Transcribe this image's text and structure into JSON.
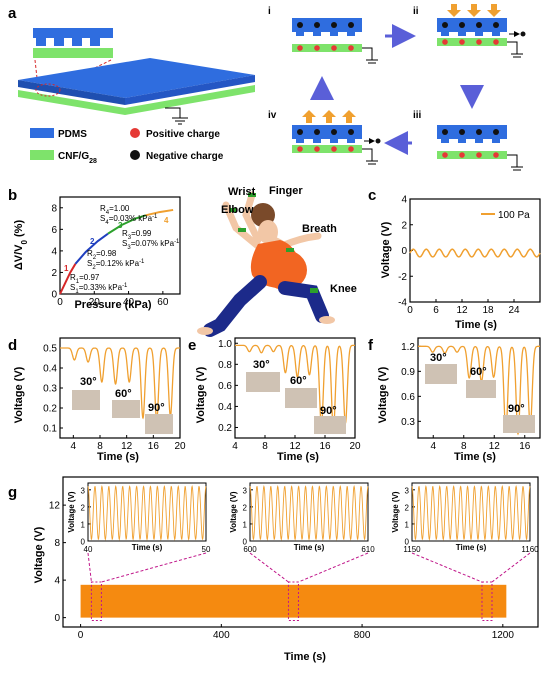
{
  "panel_a": {
    "label": "a",
    "steps": [
      "i",
      "ii",
      "iii",
      "iv"
    ],
    "legend": {
      "pdms": "PDMS",
      "cnf": "CNF/G",
      "cnf_sub": "28",
      "positive": "Positive charge",
      "negative": "Negative charge"
    },
    "colors": {
      "pdms": "#2f6ddf",
      "cnf": "#7ee36b",
      "positive": "#e53935",
      "negative": "#111111",
      "arrow_press": "#f0a030",
      "arrow_flow": "#5a5fd8"
    }
  },
  "panel_b": {
    "label": "b",
    "ylabel": "ΔV/V",
    "ylabel_sub": "0",
    "ylabel_tail": " (%)",
    "xlabel": "Pressure (kPa)",
    "xticks": [
      "0",
      "20",
      "40",
      "60"
    ],
    "yticks": [
      "0",
      "2",
      "4",
      "6",
      "8"
    ],
    "segments": [
      {
        "id": "1",
        "color": "#d62728",
        "r2": "R",
        "r2_sub": "1",
        "r2_val": "=0.97",
        "s": "S",
        "s_sub": "1",
        "s_val": "=0.33% kPa",
        "s_sup": "-1"
      },
      {
        "id": "2",
        "color": "#1f3fbf",
        "r2": "R",
        "r2_sub": "2",
        "r2_val": "=0.98",
        "s": "S",
        "s_sub": "2",
        "s_val": "=0.12% kPa",
        "s_sup": "-1"
      },
      {
        "id": "3",
        "color": "#2ca02c",
        "r2": "R",
        "r2_sub": "3",
        "r2_val": "=0.99",
        "s": "S",
        "s_sub": "3",
        "s_val": "=0.07% kPa",
        "s_sup": "-1"
      },
      {
        "id": "4",
        "color": "#f0a030",
        "r2": "R",
        "r2_sub": "4",
        "r2_val": "=1.00",
        "s": "S",
        "s_sub": "4",
        "s_val": "=0.03% kPa",
        "s_sup": "-1"
      }
    ]
  },
  "body_labels": {
    "wrist": "Wrist",
    "finger": "Finger",
    "elbow": "Elbow",
    "breath": "Breath",
    "knee": "Knee"
  },
  "panel_c": {
    "label": "c",
    "ylabel": "Voltage (V)",
    "xlabel": "Time (s)",
    "legend": "100 Pa",
    "xticks": [
      "0",
      "6",
      "12",
      "18",
      "24"
    ],
    "yticks": [
      "-4",
      "-2",
      "0",
      "2",
      "4"
    ]
  },
  "panel_d": {
    "label": "d",
    "ylabel": "Voltage (V)",
    "xlabel": "Time (s)",
    "angles": [
      "30°",
      "60°",
      "90°"
    ],
    "xticks": [
      "4",
      "8",
      "12",
      "16",
      "20"
    ],
    "yticks": [
      "0.1",
      "0.2",
      "0.3",
      "0.4",
      "0.5"
    ]
  },
  "panel_e": {
    "label": "e",
    "ylabel": "Voltage (V)",
    "xlabel": "Time (s)",
    "angles": [
      "30°",
      "60°",
      "90°"
    ],
    "xticks": [
      "4",
      "8",
      "12",
      "16",
      "20"
    ],
    "yticks": [
      "0.2",
      "0.4",
      "0.6",
      "0.8",
      "1.0"
    ]
  },
  "panel_f": {
    "label": "f",
    "ylabel": "Voltage (V)",
    "xlabel": "Time (s)",
    "angles": [
      "30°",
      "60°",
      "90°"
    ],
    "xticks": [
      "4",
      "8",
      "12",
      "16"
    ],
    "yticks": [
      "0.3",
      "0.6",
      "0.9",
      "1.2"
    ]
  },
  "panel_g": {
    "label": "g",
    "ylabel": "Voltage (V)",
    "xlabel": "Time (s)",
    "xticks": [
      "0",
      "400",
      "800",
      "1200"
    ],
    "yticks": [
      "0",
      "4",
      "8",
      "12"
    ],
    "insets": [
      {
        "xticks": [
          "40",
          "50"
        ],
        "yticks": [
          "0",
          "1",
          "2",
          "3"
        ],
        "ylabel": "Voltage (V)",
        "xlabel": "Time (s)"
      },
      {
        "xticks": [
          "600",
          "610"
        ],
        "yticks": [
          "0",
          "1",
          "2",
          "3"
        ],
        "ylabel": "Voltage (V)",
        "xlabel": "Time (s)"
      },
      {
        "xticks": [
          "1150",
          "1160"
        ],
        "yticks": [
          "0",
          "1",
          "2",
          "3"
        ],
        "ylabel": "Voltage (V)",
        "xlabel": "Time (s)"
      }
    ]
  },
  "chart_data": [
    {
      "panel": "b",
      "type": "line",
      "xlabel": "Pressure (kPa)",
      "ylabel": "ΔV/V0 (%)",
      "xlim": [
        0,
        70
      ],
      "ylim": [
        0,
        9
      ],
      "series": [
        {
          "name": "1",
          "x": [
            0,
            3,
            6,
            9
          ],
          "y": [
            0,
            1.0,
            2.0,
            2.8
          ]
        },
        {
          "name": "2",
          "x": [
            9,
            15,
            22,
            28
          ],
          "y": [
            2.8,
            3.9,
            4.9,
            5.6
          ]
        },
        {
          "name": "3",
          "x": [
            28,
            36,
            44,
            50
          ],
          "y": [
            5.6,
            6.4,
            7.0,
            7.3
          ]
        },
        {
          "name": "4",
          "x": [
            50,
            58,
            66
          ],
          "y": [
            7.3,
            7.6,
            7.8
          ]
        }
      ]
    },
    {
      "panel": "c",
      "type": "line",
      "xlabel": "Time (s)",
      "ylabel": "Voltage (V)",
      "xlim": [
        0,
        30
      ],
      "ylim": [
        -4,
        4
      ],
      "series": [
        {
          "name": "100 Pa",
          "baseline": -0.2,
          "amplitude": 0.3,
          "cycles": 10
        }
      ]
    },
    {
      "panel": "d",
      "type": "line",
      "xlabel": "Time (s)",
      "ylabel": "Voltage (V)",
      "xlim": [
        2,
        20
      ],
      "ylim": [
        0.05,
        0.55
      ],
      "baseline": 0.5,
      "series": [
        {
          "name": "30°",
          "minima": [
            0.44,
            0.43
          ]
        },
        {
          "name": "60°",
          "minima": [
            0.33,
            0.32,
            0.33
          ]
        },
        {
          "name": "90°",
          "minima": [
            0.15,
            0.14,
            0.16
          ]
        }
      ]
    },
    {
      "panel": "e",
      "type": "line",
      "xlabel": "Time (s)",
      "ylabel": "Voltage (V)",
      "xlim": [
        4,
        20
      ],
      "ylim": [
        0.1,
        1.05
      ],
      "baseline": 0.98,
      "series": [
        {
          "name": "30°",
          "minima": [
            0.92,
            0.91,
            0.92
          ]
        },
        {
          "name": "60°",
          "minima": [
            0.72,
            0.68,
            0.7
          ]
        },
        {
          "name": "90°",
          "minima": [
            0.22,
            0.18,
            0.24
          ]
        }
      ]
    },
    {
      "panel": "f",
      "type": "line",
      "xlabel": "Time (s)",
      "ylabel": "Voltage (V)",
      "xlim": [
        2,
        18
      ],
      "ylim": [
        0.1,
        1.3
      ],
      "baseline": 1.2,
      "series": [
        {
          "name": "30°",
          "minima": [
            1.13,
            1.12,
            1.13
          ]
        },
        {
          "name": "60°",
          "minima": [
            0.82,
            0.78,
            0.83
          ]
        },
        {
          "name": "90°",
          "minima": [
            0.2,
            0.15,
            0.25
          ]
        }
      ]
    },
    {
      "panel": "g",
      "type": "area",
      "xlabel": "Time (s)",
      "ylabel": "Voltage (V)",
      "xlim": [
        -50,
        1300
      ],
      "ylim": [
        -1,
        15
      ],
      "x_range": [
        0,
        1210
      ],
      "y_range": [
        0,
        3.5
      ]
    }
  ]
}
